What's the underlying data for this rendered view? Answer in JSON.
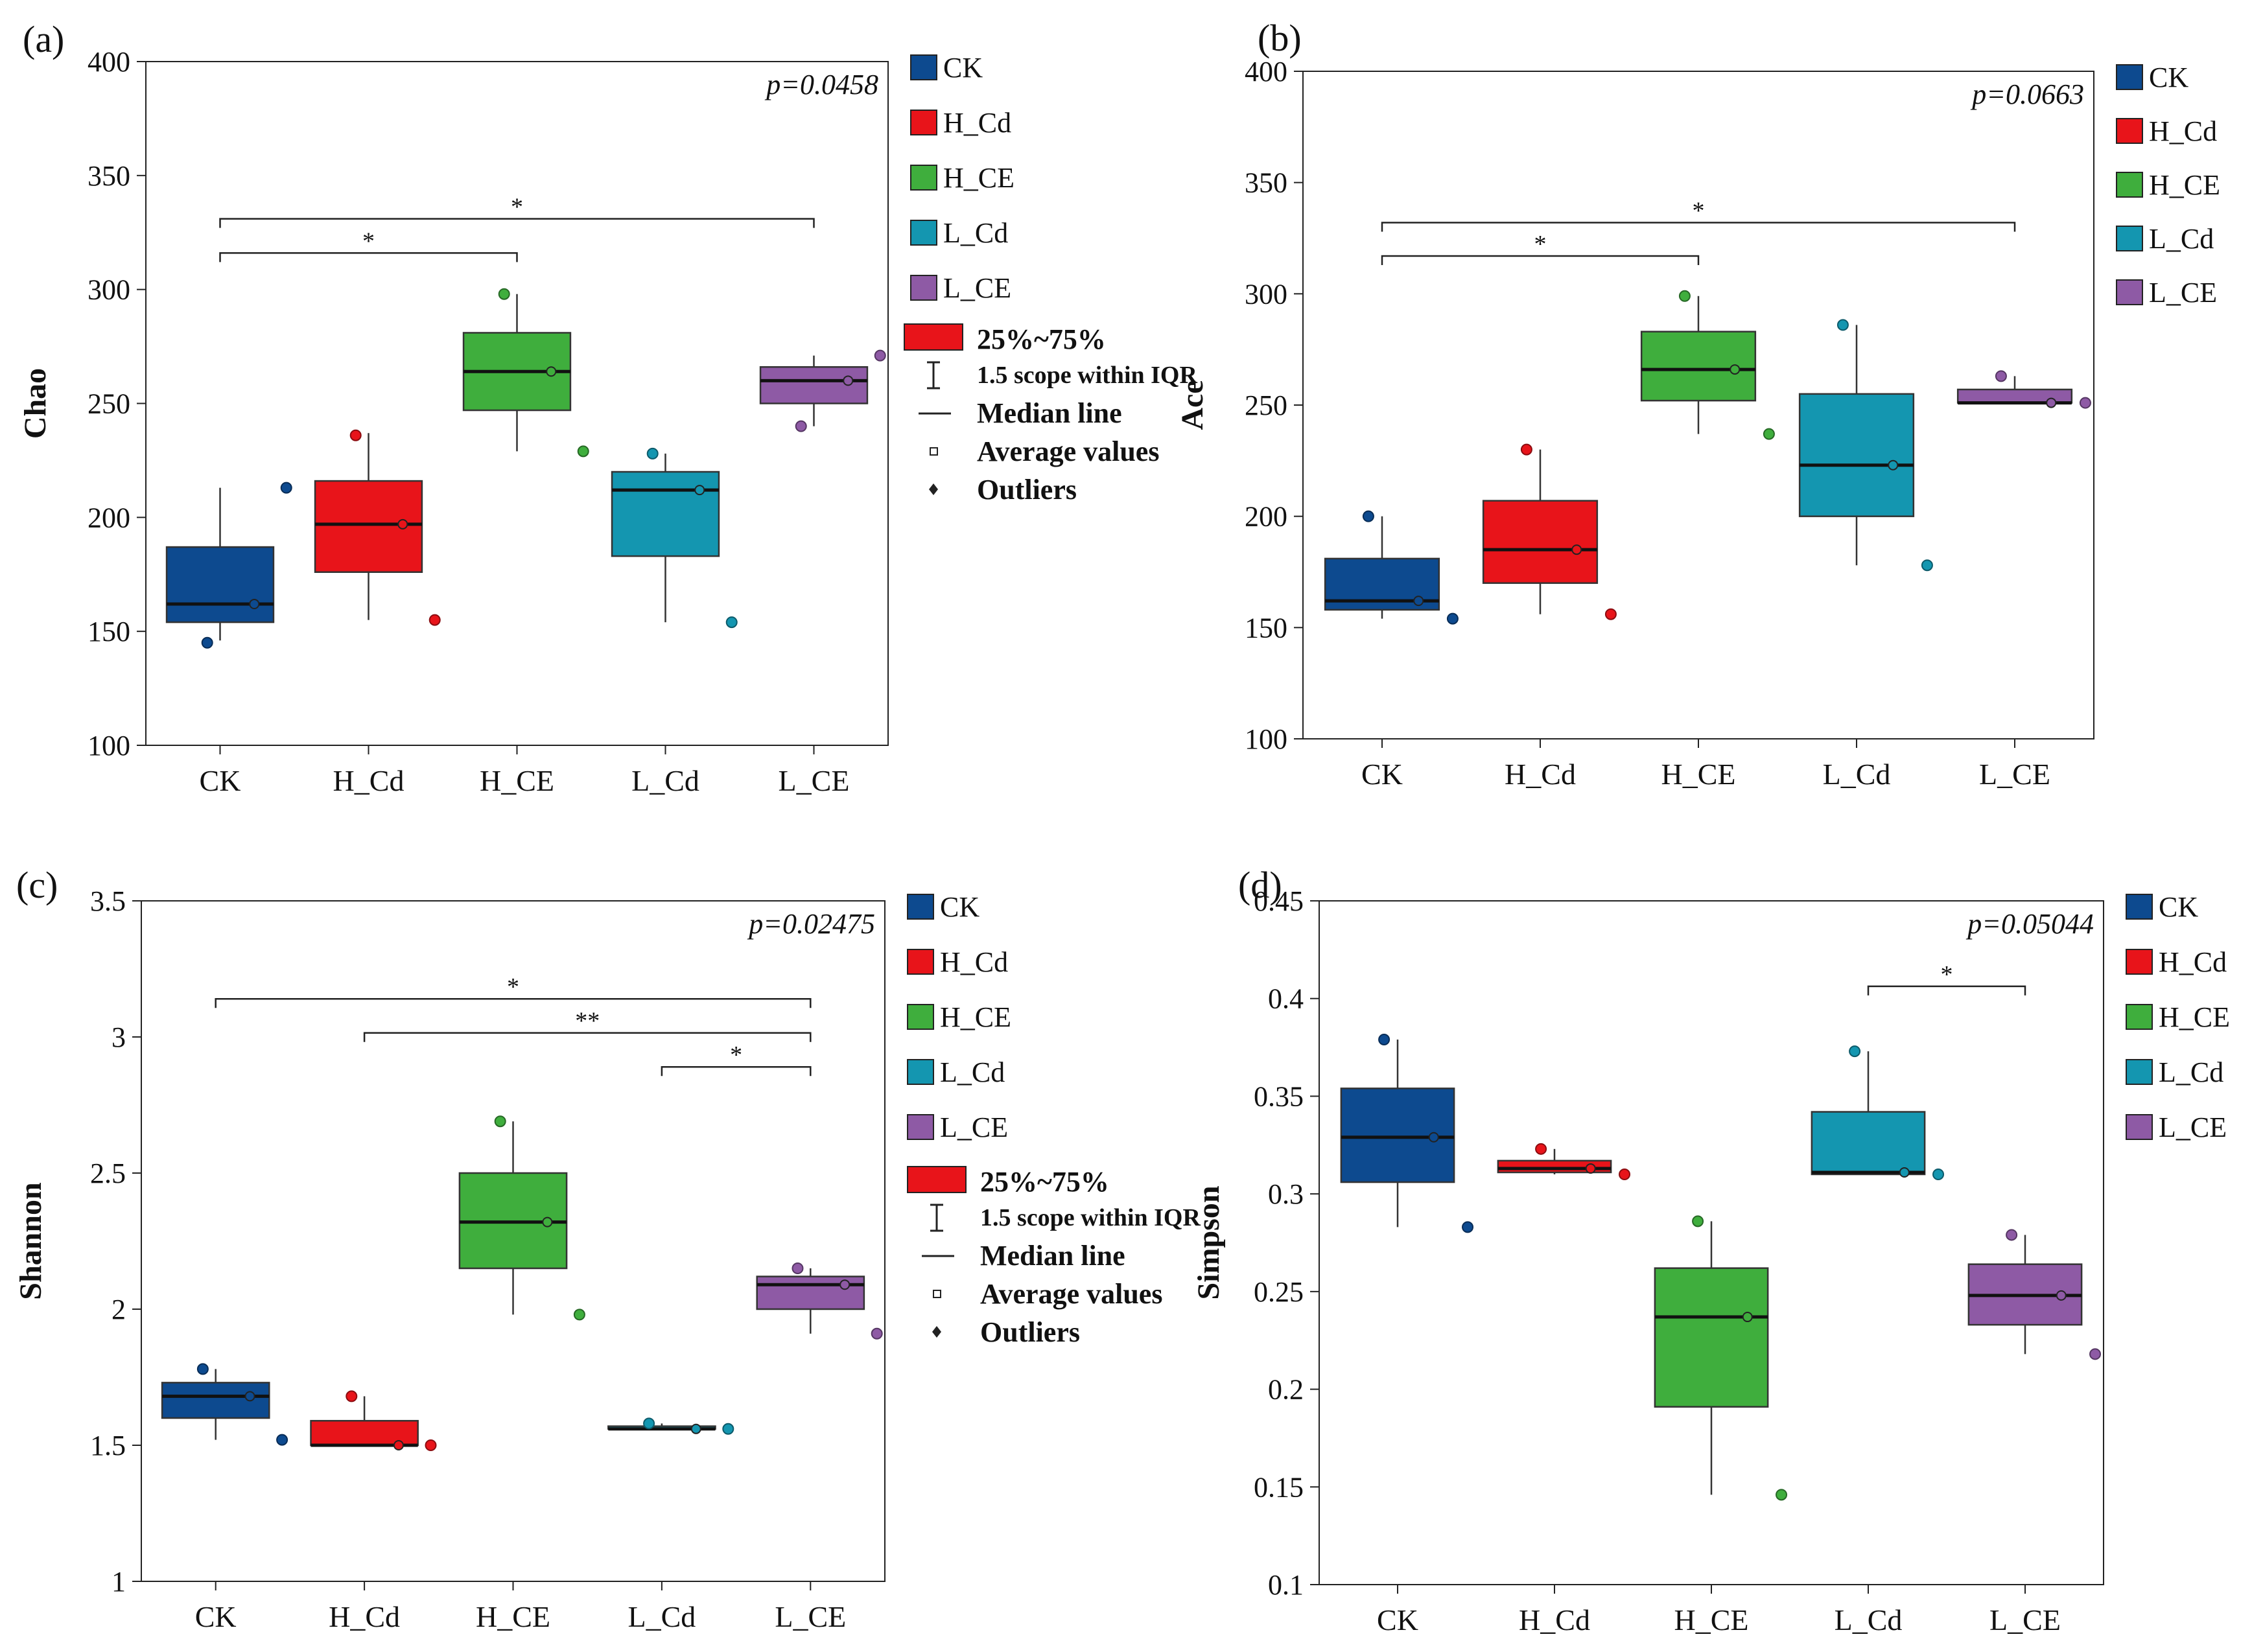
{
  "colors": {
    "CK": "#0d4a8f",
    "H_Cd": "#e8141a",
    "H_CE": "#3fae3d",
    "L_Cd": "#1496b0",
    "L_CE": "#8e5aa5"
  },
  "legend_entries": [
    "CK",
    "H_Cd",
    "H_CE",
    "L_Cd",
    "L_CE"
  ],
  "key": {
    "box": "25%~75%",
    "whisker": "1.5 scope within IQR",
    "median": "Median line",
    "mean": "Average values",
    "outlier": "Outliers"
  },
  "chart_data": [
    {
      "type": "box",
      "panel_label": "(a)",
      "ylabel": "Chao",
      "p_text": "p=0.0458",
      "ylim": [
        100,
        400
      ],
      "yticks": [
        100,
        150,
        200,
        250,
        300,
        350,
        400
      ],
      "categories": [
        "CK",
        "H_Cd",
        "H_CE",
        "L_Cd",
        "L_CE"
      ],
      "groups": [
        {
          "name": "CK",
          "q1": 154,
          "median": 162,
          "q3": 187,
          "whisk_lo": 146,
          "whisk_hi": 213,
          "mean": 162,
          "points": [
            145,
            213
          ]
        },
        {
          "name": "H_Cd",
          "q1": 176,
          "median": 197,
          "q3": 216,
          "whisk_lo": 155,
          "whisk_hi": 237,
          "mean": 197,
          "points": [
            236,
            155
          ]
        },
        {
          "name": "H_CE",
          "q1": 247,
          "median": 264,
          "q3": 281,
          "whisk_lo": 229,
          "whisk_hi": 298,
          "mean": 264,
          "points": [
            298,
            229
          ]
        },
        {
          "name": "L_Cd",
          "q1": 183,
          "median": 212,
          "q3": 220,
          "whisk_lo": 154,
          "whisk_hi": 228,
          "mean": 212,
          "points": [
            228,
            154
          ]
        },
        {
          "name": "L_CE",
          "q1": 250,
          "median": 260,
          "q3": 266,
          "whisk_lo": 240,
          "whisk_hi": 271,
          "mean": 260,
          "points": [
            240,
            271
          ]
        }
      ],
      "sig": [
        {
          "from": "CK",
          "to": "H_CE",
          "label": "*"
        },
        {
          "from": "CK",
          "to": "L_CE",
          "label": "*"
        }
      ]
    },
    {
      "type": "box",
      "panel_label": "(b)",
      "ylabel": "Ace",
      "p_text": "p=0.0663",
      "ylim": [
        100,
        400
      ],
      "yticks": [
        100,
        150,
        200,
        250,
        300,
        350,
        400
      ],
      "categories": [
        "CK",
        "H_Cd",
        "H_CE",
        "L_Cd",
        "L_CE"
      ],
      "groups": [
        {
          "name": "CK",
          "q1": 158,
          "median": 162,
          "q3": 181,
          "whisk_lo": 154,
          "whisk_hi": 200,
          "mean": 162,
          "points": [
            200,
            154
          ]
        },
        {
          "name": "H_Cd",
          "q1": 170,
          "median": 185,
          "q3": 207,
          "whisk_lo": 156,
          "whisk_hi": 230,
          "mean": 185,
          "points": [
            230,
            156
          ]
        },
        {
          "name": "H_CE",
          "q1": 252,
          "median": 266,
          "q3": 283,
          "whisk_lo": 237,
          "whisk_hi": 299,
          "mean": 266,
          "points": [
            299,
            237
          ]
        },
        {
          "name": "L_Cd",
          "q1": 200,
          "median": 223,
          "q3": 255,
          "whisk_lo": 178,
          "whisk_hi": 286,
          "mean": 223,
          "points": [
            286,
            178
          ]
        },
        {
          "name": "L_CE",
          "q1": 251,
          "median": 251,
          "q3": 257,
          "whisk_lo": 251,
          "whisk_hi": 263,
          "mean": 251,
          "points": [
            263,
            251
          ]
        }
      ],
      "sig": [
        {
          "from": "CK",
          "to": "H_CE",
          "label": "*"
        },
        {
          "from": "CK",
          "to": "L_CE",
          "label": "*"
        }
      ]
    },
    {
      "type": "box",
      "panel_label": "(c)",
      "ylabel": "Shannon",
      "p_text": "p=0.02475",
      "ylim": [
        1,
        3.5
      ],
      "yticks": [
        1,
        1.5,
        2,
        2.5,
        3,
        3.5
      ],
      "categories": [
        "CK",
        "H_Cd",
        "H_CE",
        "L_Cd",
        "L_CE"
      ],
      "groups": [
        {
          "name": "CK",
          "q1": 1.6,
          "median": 1.68,
          "q3": 1.73,
          "whisk_lo": 1.52,
          "whisk_hi": 1.78,
          "mean": 1.68,
          "points": [
            1.78,
            1.52
          ]
        },
        {
          "name": "H_Cd",
          "q1": 1.5,
          "median": 1.5,
          "q3": 1.59,
          "whisk_lo": 1.5,
          "whisk_hi": 1.68,
          "mean": 1.5,
          "points": [
            1.68,
            1.5
          ]
        },
        {
          "name": "H_CE",
          "q1": 2.15,
          "median": 2.32,
          "q3": 2.5,
          "whisk_lo": 1.98,
          "whisk_hi": 2.69,
          "mean": 2.32,
          "points": [
            2.69,
            1.98
          ]
        },
        {
          "name": "L_Cd",
          "q1": 1.56,
          "median": 1.56,
          "q3": 1.57,
          "whisk_lo": 1.56,
          "whisk_hi": 1.58,
          "mean": 1.56,
          "points": [
            1.58,
            1.56
          ]
        },
        {
          "name": "L_CE",
          "q1": 2.0,
          "median": 2.09,
          "q3": 2.12,
          "whisk_lo": 1.91,
          "whisk_hi": 2.15,
          "mean": 2.09,
          "points": [
            2.15,
            1.91
          ]
        }
      ],
      "sig": [
        {
          "from": "L_Cd",
          "to": "L_CE",
          "label": "*"
        },
        {
          "from": "H_Cd",
          "to": "L_CE",
          "label": "**"
        },
        {
          "from": "CK",
          "to": "L_CE",
          "label": "*"
        }
      ]
    },
    {
      "type": "box",
      "panel_label": "(d)",
      "ylabel": "Simpson",
      "p_text": "p=0.05044",
      "ylim": [
        0.1,
        0.45
      ],
      "yticks": [
        0.1,
        0.15,
        0.2,
        0.25,
        0.3,
        0.35,
        0.4,
        0.45
      ],
      "categories": [
        "CK",
        "H_Cd",
        "H_CE",
        "L_Cd",
        "L_CE"
      ],
      "groups": [
        {
          "name": "CK",
          "q1": 0.306,
          "median": 0.329,
          "q3": 0.354,
          "whisk_lo": 0.283,
          "whisk_hi": 0.379,
          "mean": 0.329,
          "points": [
            0.379,
            0.283
          ]
        },
        {
          "name": "H_Cd",
          "q1": 0.311,
          "median": 0.313,
          "q3": 0.317,
          "whisk_lo": 0.31,
          "whisk_hi": 0.323,
          "mean": 0.313,
          "points": [
            0.323,
            0.31
          ]
        },
        {
          "name": "H_CE",
          "q1": 0.191,
          "median": 0.237,
          "q3": 0.262,
          "whisk_lo": 0.146,
          "whisk_hi": 0.286,
          "mean": 0.237,
          "points": [
            0.286,
            0.146
          ]
        },
        {
          "name": "L_Cd",
          "q1": 0.31,
          "median": 0.311,
          "q3": 0.342,
          "whisk_lo": 0.31,
          "whisk_hi": 0.373,
          "mean": 0.311,
          "points": [
            0.373,
            0.31
          ]
        },
        {
          "name": "L_CE",
          "q1": 0.233,
          "median": 0.248,
          "q3": 0.264,
          "whisk_lo": 0.218,
          "whisk_hi": 0.279,
          "mean": 0.248,
          "points": [
            0.279,
            0.218
          ]
        }
      ],
      "sig": [
        {
          "from": "L_Cd",
          "to": "L_CE",
          "label": "*"
        }
      ]
    }
  ]
}
